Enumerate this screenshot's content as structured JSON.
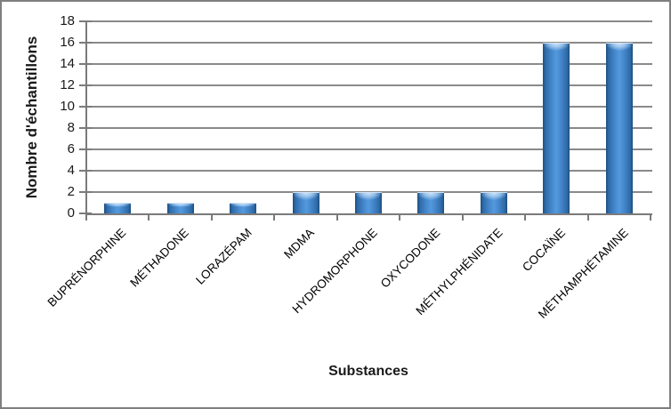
{
  "chart_data": {
    "type": "bar",
    "title": "",
    "categories": [
      "BUPRÉNORPHINE",
      "MÉTHADONE",
      "LORAZÉPAM",
      "MDMA",
      "HYDROMORPHONE",
      "OXYCODONE",
      "MÉTHYLPHÉNIDATE",
      "COCAÏNE",
      "MÉTHAMPHÉTAMINE"
    ],
    "values": [
      1,
      1,
      1,
      2,
      2,
      2,
      2,
      16,
      16
    ],
    "xlabel": "Substances",
    "ylabel": "Nombre d'échantillons",
    "ylim": [
      0,
      18
    ],
    "ytick_step": 2,
    "yticks": [
      0,
      2,
      4,
      6,
      8,
      10,
      12,
      14,
      16,
      18
    ],
    "grid": "horizontal-only",
    "legend": "none",
    "bar_style": "glossy-beveled-3d",
    "colors": {
      "bar_center": "#549ade",
      "bar_mid": "#4486cb",
      "bar_edge": "#1d4e7e",
      "bar_cap_highlight": "#cfe3f7",
      "gridline": "#8a8a8a",
      "axis_line": "#7a7a7a",
      "text": "#1a1a1a",
      "border": "#7f7f7f",
      "background": "#ffffff"
    }
  }
}
